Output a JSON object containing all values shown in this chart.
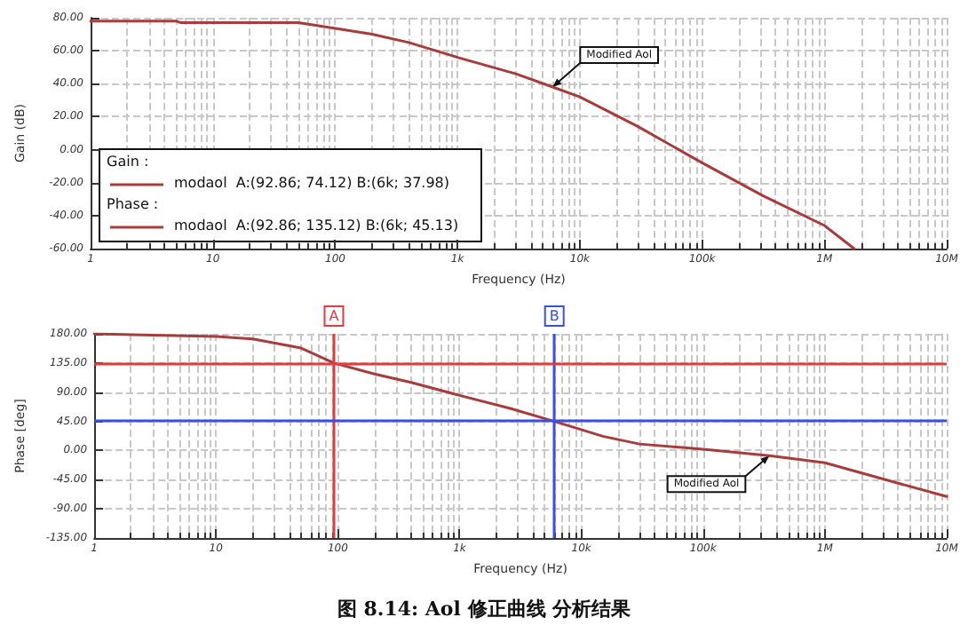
{
  "chart_data": [
    {
      "type": "line",
      "xlabel": "Frequency (Hz)",
      "ylabel": "Gain (dB)",
      "log": "x",
      "grid": true,
      "marker": "none",
      "line_style": "solid",
      "x": [
        1,
        5,
        5.5,
        10,
        50,
        92.86,
        200,
        400,
        1000,
        3000,
        6000,
        10000,
        30000,
        100000,
        316000,
        1000000,
        1750000
      ],
      "series": [
        {
          "color": "#a83c3c",
          "values": [
            78,
            78,
            77,
            77,
            77,
            74,
            70,
            65,
            56,
            46,
            38,
            32,
            14,
            -8,
            -28,
            -46,
            -60
          ]
        }
      ],
      "xlim": [
        1,
        10000000
      ],
      "xticks": [
        1,
        10,
        100,
        {
          "value": 1000,
          "label": "1k"
        },
        {
          "value": 10000,
          "label": "10k"
        },
        {
          "value": 100000,
          "label": "100k"
        },
        {
          "value": 1000000,
          "label": "1M"
        },
        {
          "value": 10000000,
          "label": "10M"
        }
      ],
      "ylim": [
        -60,
        80
      ],
      "yticks": [
        {
          "value": -60,
          "label": "-60.00"
        },
        {
          "value": -40,
          "label": "-40.00"
        },
        {
          "value": -20,
          "label": "-20.00"
        },
        {
          "value": 0,
          "label": "0.00"
        },
        {
          "value": 20,
          "label": "20.00"
        },
        {
          "value": 40,
          "label": "40.00"
        },
        {
          "value": 60,
          "label": "60.00"
        },
        {
          "value": 80,
          "label": "80.00"
        }
      ],
      "annotations": [
        {
          "text": "Modified Aol",
          "x": 6000,
          "y": 38
        },
        "Gain :",
        "modaol  A:(92.86; 74.12) B:(6k; 37.98)",
        "Phase :",
        "modaol  A:(92.86; 135.12) B:(6k; 45.13)"
      ]
    },
    {
      "type": "line",
      "xlabel": "Frequency (Hz)",
      "ylabel": "Phase [deg]",
      "log": "x",
      "grid": true,
      "marker": "none",
      "line_style": "solid",
      "x": [
        1,
        3,
        10,
        20,
        50,
        92.86,
        200,
        400,
        1000,
        2600,
        6000,
        15000,
        30000,
        100000,
        350000,
        1000000,
        3000000,
        10000000
      ],
      "series": [
        {
          "color": "#a83c3c",
          "values": [
            180,
            178,
            176,
            172,
            158,
            135,
            118,
            105,
            85,
            65,
            45,
            22,
            10,
            2,
            -8,
            -19,
            -44,
            -71
          ]
        }
      ],
      "xlim": [
        1,
        10000000
      ],
      "xticks": [
        1,
        10,
        100,
        {
          "value": 1000,
          "label": "1k"
        },
        {
          "value": 10000,
          "label": "10k"
        },
        {
          "value": 100000,
          "label": "100k"
        },
        {
          "value": 1000000,
          "label": "1M"
        },
        {
          "value": 10000000,
          "label": "10M"
        }
      ],
      "ylim": [
        -135,
        180
      ],
      "yticks": [
        {
          "value": -135,
          "label": "-135.00"
        },
        {
          "value": -90,
          "label": "-90.00"
        },
        {
          "value": -45,
          "label": "-45.00"
        },
        {
          "value": 0,
          "label": "0.00"
        },
        {
          "value": 45,
          "label": "45.00"
        },
        {
          "value": 90,
          "label": "90.00"
        },
        {
          "value": 135,
          "label": "135.00"
        },
        {
          "value": 180,
          "label": "180.00"
        }
      ],
      "ref_lines": [
        {
          "axis": "x",
          "value": 92.86,
          "label": "A",
          "color": "#e83a3a"
        },
        {
          "axis": "x",
          "value": 6000,
          "label": "B",
          "color": "#3a4ee8"
        },
        {
          "axis": "y",
          "value": 135.12,
          "label": null,
          "color": "#e83a3a"
        },
        {
          "axis": "y",
          "value": 45.13,
          "label": null,
          "color": "#3a4ee8"
        }
      ],
      "annotations": [
        {
          "text": "Modified Aol",
          "x": 350000,
          "y": -8
        },
        "图 8.14: Aol 修正曲线 分析结果"
      ]
    }
  ]
}
